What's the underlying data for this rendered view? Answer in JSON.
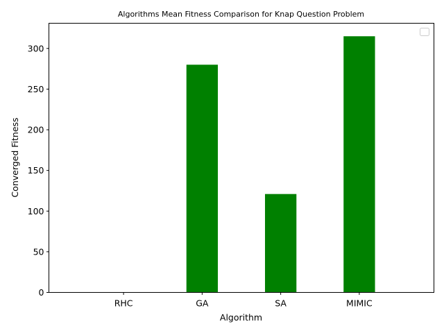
{
  "chart_data": {
    "type": "bar",
    "title": "Algorithms Mean Fitness Comparison for Knap Question Problem",
    "xlabel": "Algorithm",
    "ylabel": "Converged Fitness",
    "categories": [
      "RHC",
      "GA",
      "SA",
      "MIMIC"
    ],
    "values": [
      0,
      280,
      121,
      315
    ],
    "ylim": [
      0,
      331
    ],
    "yticks": [
      0,
      50,
      100,
      150,
      200,
      250,
      300
    ],
    "bar_color": "#008000",
    "grid": false,
    "legend": "top-right, empty"
  }
}
